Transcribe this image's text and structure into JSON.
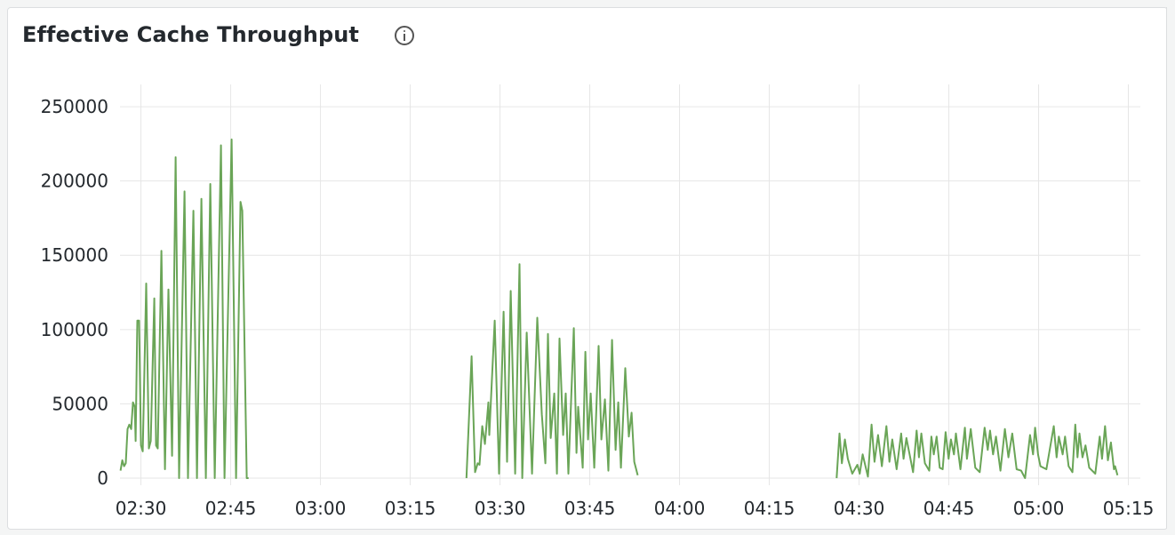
{
  "panel": {
    "title": "Effective Cache Throughput",
    "info_icon": "info-circle-icon"
  },
  "chart_data": {
    "type": "line",
    "title": "Effective Cache Throughput",
    "xlabel": "",
    "ylabel": "",
    "xlim": [
      "02:26:30",
      "05:17:00"
    ],
    "ylim": [
      0,
      265000
    ],
    "grid": true,
    "line_color": "#6aa557",
    "grid_color": "#e6e6e6",
    "y_ticks": [
      0,
      50000,
      100000,
      150000,
      200000,
      250000
    ],
    "y_tick_labels": [
      "0",
      "50000",
      "100000",
      "150000",
      "200000",
      "250000"
    ],
    "x_ticks": [
      "02:30",
      "02:45",
      "03:00",
      "03:15",
      "03:30",
      "03:45",
      "04:00",
      "04:15",
      "04:30",
      "04:45",
      "05:00",
      "05:15"
    ],
    "segments": [
      [
        [
          "02:26:35",
          5000
        ],
        [
          "02:26:53",
          12000
        ],
        [
          "02:27:11",
          8000
        ],
        [
          "02:27:28",
          10000
        ],
        [
          "02:27:46",
          33000
        ],
        [
          "02:28:04",
          36000
        ],
        [
          "02:28:22",
          33000
        ],
        [
          "02:28:40",
          51000
        ],
        [
          "02:28:58",
          48000
        ],
        [
          "02:29:07",
          25000
        ],
        [
          "02:29:24",
          106000
        ],
        [
          "02:29:42",
          106000
        ],
        [
          "02:30:00",
          22000
        ],
        [
          "02:30:18",
          18000
        ],
        [
          "02:30:53",
          131000
        ],
        [
          "02:31:20",
          20000
        ],
        [
          "02:31:38",
          25000
        ],
        [
          "02:32:14",
          121000
        ],
        [
          "02:32:32",
          22000
        ],
        [
          "02:32:49",
          20000
        ],
        [
          "02:33:25",
          153000
        ],
        [
          "02:34:01",
          6000
        ],
        [
          "02:34:36",
          127000
        ],
        [
          "02:35:12",
          15000
        ],
        [
          "02:35:48",
          216000
        ],
        [
          "02:36:23",
          0
        ],
        [
          "02:37:17",
          193000
        ],
        [
          "02:37:52",
          0
        ],
        [
          "02:38:46",
          180000
        ],
        [
          "02:39:22",
          0
        ],
        [
          "02:40:06",
          188000
        ],
        [
          "02:40:51",
          0
        ],
        [
          "02:41:35",
          198000
        ],
        [
          "02:42:20",
          0
        ],
        [
          "02:43:22",
          224000
        ],
        [
          "02:43:58",
          0
        ],
        [
          "02:45:09",
          228000
        ],
        [
          "02:45:54",
          0
        ],
        [
          "02:46:38",
          186000
        ],
        [
          "02:46:56",
          180000
        ],
        [
          "02:47:41",
          0
        ],
        [
          "02:47:59",
          0
        ]
      ],
      [
        [
          "03:24:24",
          0
        ],
        [
          "03:25:15",
          82000
        ],
        [
          "03:25:50",
          4000
        ],
        [
          "03:26:17",
          10000
        ],
        [
          "03:26:35",
          9000
        ],
        [
          "03:27:02",
          35000
        ],
        [
          "03:27:29",
          23000
        ],
        [
          "03:28:04",
          51000
        ],
        [
          "03:28:13",
          29000
        ],
        [
          "03:29:07",
          106000
        ],
        [
          "03:29:51",
          3000
        ],
        [
          "03:30:36",
          112000
        ],
        [
          "03:31:11",
          11000
        ],
        [
          "03:31:47",
          126000
        ],
        [
          "03:32:32",
          3000
        ],
        [
          "03:33:16",
          144000
        ],
        [
          "03:33:43",
          0
        ],
        [
          "03:34:28",
          98000
        ],
        [
          "03:35:21",
          3000
        ],
        [
          "03:36:14",
          108000
        ],
        [
          "03:36:59",
          43000
        ],
        [
          "03:37:35",
          10000
        ],
        [
          "03:38:01",
          97000
        ],
        [
          "03:38:28",
          27000
        ],
        [
          "03:39:04",
          57000
        ],
        [
          "03:39:31",
          3000
        ],
        [
          "03:39:57",
          94000
        ],
        [
          "03:40:33",
          29000
        ],
        [
          "03:40:59",
          57000
        ],
        [
          "03:41:26",
          3000
        ],
        [
          "03:42:20",
          101000
        ],
        [
          "03:42:47",
          17000
        ],
        [
          "03:43:04",
          48000
        ],
        [
          "03:43:49",
          7000
        ],
        [
          "03:44:16",
          85000
        ],
        [
          "03:44:43",
          26000
        ],
        [
          "03:45:09",
          57000
        ],
        [
          "03:45:45",
          7000
        ],
        [
          "03:46:29",
          89000
        ],
        [
          "03:46:56",
          26000
        ],
        [
          "03:47:32",
          53000
        ],
        [
          "03:48:07",
          5000
        ],
        [
          "03:48:43",
          93000
        ],
        [
          "03:49:19",
          19000
        ],
        [
          "03:49:46",
          51000
        ],
        [
          "03:50:12",
          7000
        ],
        [
          "03:50:56",
          74000
        ],
        [
          "03:51:32",
          28000
        ],
        [
          "03:51:59",
          44000
        ],
        [
          "03:52:26",
          11000
        ],
        [
          "03:53:01",
          2000
        ]
      ],
      [
        [
          "04:26:15",
          0
        ],
        [
          "04:26:44",
          30000
        ],
        [
          "04:27:08",
          10000
        ],
        [
          "04:27:38",
          26000
        ],
        [
          "04:28:07",
          13000
        ],
        [
          "04:28:52",
          3000
        ],
        [
          "04:29:43",
          9000
        ],
        [
          "04:30:07",
          3000
        ],
        [
          "04:30:36",
          16000
        ],
        [
          "04:31:29",
          1000
        ],
        [
          "04:32:05",
          36000
        ],
        [
          "04:32:35",
          11000
        ],
        [
          "04:33:10",
          29000
        ],
        [
          "04:33:49",
          8000
        ],
        [
          "04:34:34",
          35000
        ],
        [
          "04:35:04",
          11000
        ],
        [
          "04:35:33",
          26000
        ],
        [
          "04:36:17",
          6000
        ],
        [
          "04:37:02",
          30000
        ],
        [
          "04:37:26",
          13000
        ],
        [
          "04:37:55",
          27000
        ],
        [
          "04:39:01",
          4000
        ],
        [
          "04:39:37",
          32000
        ],
        [
          "04:40:00",
          14000
        ],
        [
          "04:40:24",
          30000
        ],
        [
          "04:41:00",
          10000
        ],
        [
          "04:41:44",
          5000
        ],
        [
          "04:42:05",
          28000
        ],
        [
          "04:42:29",
          16000
        ],
        [
          "04:42:58",
          28000
        ],
        [
          "04:43:29",
          7000
        ],
        [
          "04:43:58",
          6000
        ],
        [
          "04:44:28",
          31000
        ],
        [
          "04:44:58",
          13000
        ],
        [
          "04:45:21",
          26000
        ],
        [
          "04:45:51",
          16000
        ],
        [
          "04:46:11",
          30000
        ],
        [
          "04:46:56",
          6000
        ],
        [
          "04:47:41",
          34000
        ],
        [
          "04:48:01",
          13000
        ],
        [
          "04:48:40",
          33000
        ],
        [
          "04:49:25",
          7000
        ],
        [
          "04:50:10",
          4000
        ],
        [
          "04:50:59",
          34000
        ],
        [
          "04:51:30",
          19000
        ],
        [
          "04:51:53",
          32000
        ],
        [
          "04:52:23",
          16000
        ],
        [
          "04:52:53",
          28000
        ],
        [
          "04:53:37",
          5000
        ],
        [
          "04:54:22",
          33000
        ],
        [
          "04:54:58",
          14000
        ],
        [
          "04:55:36",
          30000
        ],
        [
          "04:56:20",
          6000
        ],
        [
          "04:57:05",
          5000
        ],
        [
          "04:57:44",
          0
        ],
        [
          "04:58:34",
          29000
        ],
        [
          "04:59:04",
          16000
        ],
        [
          "04:59:25",
          34000
        ],
        [
          "04:59:54",
          16000
        ],
        [
          "05:00:18",
          8000
        ],
        [
          "05:01:18",
          6000
        ],
        [
          "05:02:32",
          35000
        ],
        [
          "05:03:01",
          14000
        ],
        [
          "05:03:23",
          28000
        ],
        [
          "05:04:01",
          16000
        ],
        [
          "05:04:25",
          28000
        ],
        [
          "05:05:01",
          8000
        ],
        [
          "05:05:39",
          4000
        ],
        [
          "05:06:08",
          36000
        ],
        [
          "05:06:30",
          14000
        ],
        [
          "05:06:50",
          30000
        ],
        [
          "05:07:20",
          14000
        ],
        [
          "05:07:50",
          22000
        ],
        [
          "05:08:28",
          7000
        ],
        [
          "05:09:28",
          3000
        ],
        [
          "05:10:13",
          28000
        ],
        [
          "05:10:36",
          13000
        ],
        [
          "05:11:06",
          35000
        ],
        [
          "05:11:35",
          12000
        ],
        [
          "05:12:05",
          24000
        ],
        [
          "05:12:35",
          6000
        ],
        [
          "05:12:47",
          8000
        ],
        [
          "05:13:11",
          2000
        ]
      ]
    ]
  }
}
